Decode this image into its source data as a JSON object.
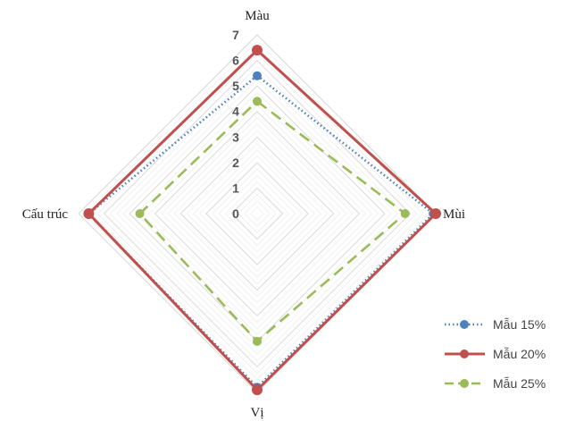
{
  "chart_data": {
    "type": "radar",
    "categories": [
      "Màu",
      "Mùi",
      "Vị",
      "Cấu trúc"
    ],
    "rlim": [
      0,
      7
    ],
    "ticks": [
      "0",
      "1",
      "2",
      "3",
      "4",
      "5",
      "6",
      "7"
    ],
    "grid": true,
    "legend_position": "bottom-right",
    "series": [
      {
        "name": "Mẫu 15%",
        "values": [
          5.4,
          6.9,
          6.8,
          6.6
        ],
        "color": "#4F81BD",
        "line_style": "dotted"
      },
      {
        "name": "Mẫu 20%",
        "values": [
          6.4,
          7.0,
          6.9,
          6.6
        ],
        "color": "#C0504D",
        "line_style": "solid"
      },
      {
        "name": "Mẫu 25%",
        "values": [
          4.4,
          5.8,
          5.0,
          4.6
        ],
        "color": "#9BBB59",
        "line_style": "dashed"
      }
    ]
  }
}
